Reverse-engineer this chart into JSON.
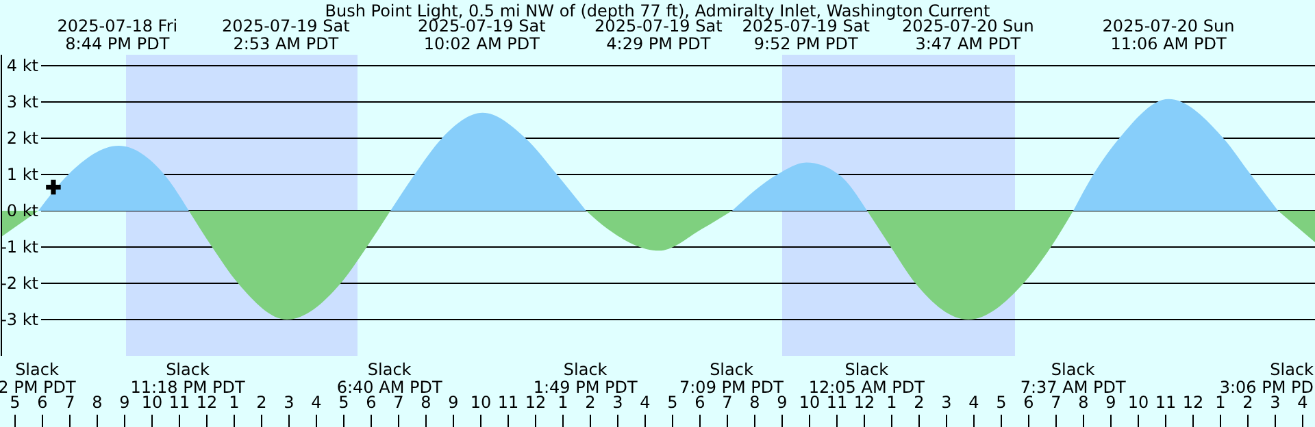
{
  "chart_data": {
    "type": "area",
    "title": "Bush Point Light, 0.5 mi NW of (depth 77 ft), Admiralty Inlet, Washington Current",
    "xlim": [
      "2025-07-18T16:27",
      "2025-07-20T16:27"
    ],
    "xticks": [
      {
        "value": "2025-07-18T17:00",
        "label": "5"
      },
      {
        "value": "2025-07-18T18:00",
        "label": "6"
      },
      {
        "value": "2025-07-18T19:00",
        "label": "7"
      },
      {
        "value": "2025-07-18T20:00",
        "label": "8"
      },
      {
        "value": "2025-07-18T21:00",
        "label": "9"
      },
      {
        "value": "2025-07-18T22:00",
        "label": "10"
      },
      {
        "value": "2025-07-18T23:00",
        "label": "11"
      },
      {
        "value": "2025-07-19T00:00",
        "label": "12"
      },
      {
        "value": "2025-07-19T01:00",
        "label": "1"
      },
      {
        "value": "2025-07-19T02:00",
        "label": "2"
      },
      {
        "value": "2025-07-19T03:00",
        "label": "3"
      },
      {
        "value": "2025-07-19T04:00",
        "label": "4"
      },
      {
        "value": "2025-07-19T05:00",
        "label": "5"
      },
      {
        "value": "2025-07-19T06:00",
        "label": "6"
      },
      {
        "value": "2025-07-19T07:00",
        "label": "7"
      },
      {
        "value": "2025-07-19T08:00",
        "label": "8"
      },
      {
        "value": "2025-07-19T09:00",
        "label": "9"
      },
      {
        "value": "2025-07-19T10:00",
        "label": "10"
      },
      {
        "value": "2025-07-19T11:00",
        "label": "11"
      },
      {
        "value": "2025-07-19T12:00",
        "label": "12"
      },
      {
        "value": "2025-07-19T13:00",
        "label": "1"
      },
      {
        "value": "2025-07-19T14:00",
        "label": "2"
      },
      {
        "value": "2025-07-19T15:00",
        "label": "3"
      },
      {
        "value": "2025-07-19T16:00",
        "label": "4"
      },
      {
        "value": "2025-07-19T17:00",
        "label": "5"
      },
      {
        "value": "2025-07-19T18:00",
        "label": "6"
      },
      {
        "value": "2025-07-19T19:00",
        "label": "7"
      },
      {
        "value": "2025-07-19T20:00",
        "label": "8"
      },
      {
        "value": "2025-07-19T21:00",
        "label": "9"
      },
      {
        "value": "2025-07-19T22:00",
        "label": "10"
      },
      {
        "value": "2025-07-19T23:00",
        "label": "11"
      },
      {
        "value": "2025-07-20T00:00",
        "label": "12"
      },
      {
        "value": "2025-07-20T01:00",
        "label": "1"
      },
      {
        "value": "2025-07-20T02:00",
        "label": "2"
      },
      {
        "value": "2025-07-20T03:00",
        "label": "3"
      },
      {
        "value": "2025-07-20T04:00",
        "label": "4"
      },
      {
        "value": "2025-07-20T05:00",
        "label": "5"
      },
      {
        "value": "2025-07-20T06:00",
        "label": "6"
      },
      {
        "value": "2025-07-20T07:00",
        "label": "7"
      },
      {
        "value": "2025-07-20T08:00",
        "label": "8"
      },
      {
        "value": "2025-07-20T09:00",
        "label": "9"
      },
      {
        "value": "2025-07-20T10:00",
        "label": "10"
      },
      {
        "value": "2025-07-20T11:00",
        "label": "11"
      },
      {
        "value": "2025-07-20T12:00",
        "label": "12"
      },
      {
        "value": "2025-07-20T13:00",
        "label": "1"
      },
      {
        "value": "2025-07-20T14:00",
        "label": "2"
      },
      {
        "value": "2025-07-20T15:00",
        "label": "3"
      },
      {
        "value": "2025-07-20T16:00",
        "label": "4"
      }
    ],
    "ylim": [
      -4,
      4.3
    ],
    "yticks": [
      {
        "value": -3,
        "label": "-3 kt"
      },
      {
        "value": -2,
        "label": "-2 kt"
      },
      {
        "value": -1,
        "label": "-1 kt"
      },
      {
        "value": 0,
        "label": "0 kt"
      },
      {
        "value": 1,
        "label": "1 kt"
      },
      {
        "value": 2,
        "label": "2 kt"
      },
      {
        "value": 3,
        "label": "3 kt"
      },
      {
        "value": 4,
        "label": "4 kt"
      }
    ],
    "grid": "y",
    "series": [
      {
        "color": "#87cefa",
        "x": [
          "2025-07-18T17:48",
          "2025-07-18T18:54",
          "2025-07-18T20:44",
          "2025-07-18T22:24",
          "2025-07-18T23:18",
          "2025-07-19T03:00",
          "2025-07-19T06:40",
          "2025-07-19T07:33",
          "2025-07-19T08:33",
          "2025-07-19T10:02",
          "2025-07-19T11:36",
          "2025-07-19T12:45",
          "2025-07-19T13:49",
          "2025-07-19T16:30",
          "2025-07-19T19:09",
          "2025-07-19T20:48",
          "2025-07-19T21:52",
          "2025-07-19T23:03",
          "2025-07-20T00:05",
          "2025-07-20T04:00",
          "2025-07-20T07:37",
          "2025-07-20T08:21",
          "2025-07-20T09:18",
          "2025-07-20T11:06",
          "2025-07-20T13:06",
          "2025-07-20T14:06",
          "2025-07-20T15:06"
        ],
        "values": [
          0,
          1,
          1.79,
          1,
          0,
          null,
          0,
          1,
          2,
          2.7,
          2,
          1,
          0,
          null,
          0,
          1,
          1.33,
          1,
          0,
          null,
          0,
          1,
          2,
          3.08,
          2,
          1,
          0
        ]
      },
      {
        "color": "#7fd07f",
        "x": [
          "2025-07-18T16:27",
          "2025-07-18T17:48",
          "2025-07-18T20:30",
          "2025-07-18T23:18",
          "2025-07-19T00:09",
          "2025-07-19T01:06",
          "2025-07-19T02:53",
          "2025-07-19T04:51",
          "2025-07-19T05:48",
          "2025-07-19T06:40",
          "2025-07-19T10:00",
          "2025-07-19T13:49",
          "2025-07-19T14:36",
          "2025-07-19T16:29",
          "2025-07-19T18:03",
          "2025-07-19T19:09",
          "2025-07-19T21:48",
          "2025-07-20T00:05",
          "2025-07-20T00:57",
          "2025-07-20T01:51",
          "2025-07-20T03:47",
          "2025-07-20T05:48",
          "2025-07-20T06:48",
          "2025-07-20T07:37",
          "2025-07-20T11:18",
          "2025-07-20T15:06",
          "2025-07-20T16:27"
        ],
        "values": [
          -0.72,
          0,
          null,
          0,
          -1,
          -2,
          -3,
          -2,
          -1,
          0,
          null,
          0,
          -0.5,
          -1.1,
          -0.5,
          0,
          null,
          0,
          -1,
          -2,
          -3,
          -2,
          -1,
          0,
          null,
          0,
          -0.87
        ]
      },
      {
        "type": "scatter",
        "color": "#000000",
        "marker": "cross",
        "x": [
          "2025-07-18T18:21"
        ],
        "values": [
          0.65
        ]
      }
    ],
    "bands": [
      {
        "axis": "x",
        "from": "2025-07-18T21:03",
        "to": "2025-07-19T05:30",
        "color": "#cce0ff"
      },
      {
        "axis": "x",
        "from": "2025-07-19T21:00",
        "to": "2025-07-20T05:30",
        "color": "#cce0ff"
      }
    ],
    "annotations": [
      "2025-07-18 Fri\n8:44 PM PDT",
      "2025-07-19 Sat\n2:53 AM PDT",
      "2025-07-19 Sat\n10:02 AM PDT",
      "2025-07-19 Sat\n4:29 PM PDT",
      "2025-07-19 Sat\n9:52 PM PDT",
      "2025-07-20 Sun\n3:47 AM PDT",
      "2025-07-20 Sun\n11:06 AM PDT",
      "Slack\n2 PM PDT",
      "Slack\n11:18 PM PDT",
      "Slack\n6:40 AM PDT",
      "Slack\n1:49 PM PDT",
      "Slack\n7:09 PM PDT",
      "Slack\n12:05 AM PDT",
      "Slack\n7:37 AM PDT",
      "Slack\n3:06 PM PD"
    ]
  }
}
